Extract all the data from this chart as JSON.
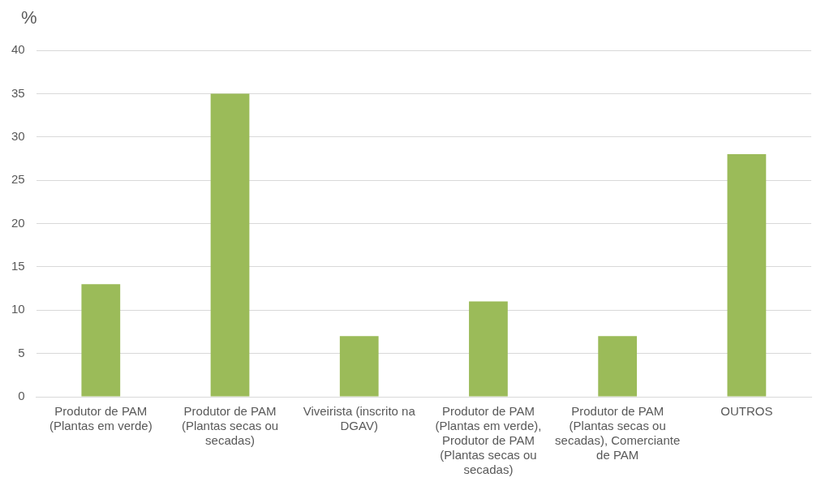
{
  "chart_data": {
    "type": "bar",
    "ylabel": "%",
    "categories": [
      "Produtor de PAM (Plantas em verde)",
      "Produtor de PAM (Plantas secas ou secadas)",
      "Viveirista (inscrito na DGAV)",
      "Produtor de PAM (Plantas em verde), Produtor de PAM (Plantas secas ou secadas)",
      "Produtor de PAM (Plantas secas ou secadas), Comerciante de PAM",
      "OUTROS"
    ],
    "values": [
      13,
      35,
      7,
      11,
      7,
      28
    ],
    "color": "#9bbb59",
    "ylim": [
      0,
      40
    ],
    "yticks": [
      0,
      5,
      10,
      15,
      20,
      25,
      30,
      35,
      40
    ],
    "grid": "y",
    "legend": false
  }
}
